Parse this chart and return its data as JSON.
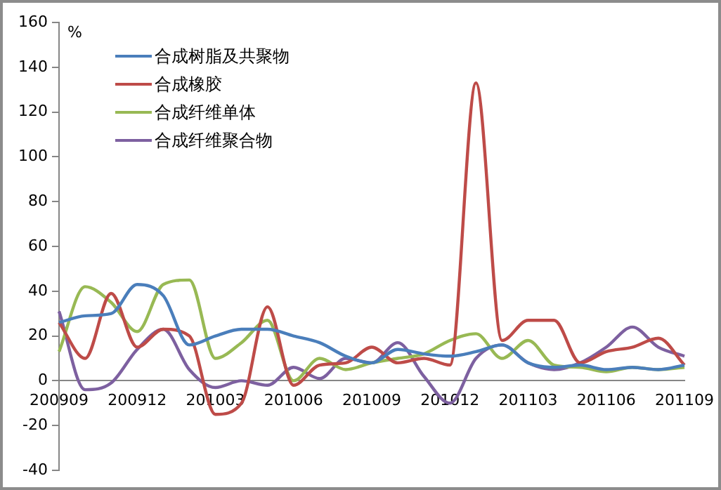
{
  "chart_data": {
    "type": "line",
    "ylabel": "%",
    "categories": [
      "200909",
      null,
      null,
      "200912",
      null,
      null,
      "201003",
      null,
      null,
      "201006",
      null,
      null,
      "201009",
      null,
      null,
      "201012",
      null,
      null,
      "201103",
      null,
      null,
      "201106",
      null,
      null,
      "201109"
    ],
    "series": [
      {
        "name": "合成树脂及共聚物",
        "color": "#4a7ebb",
        "values": [
          26,
          29,
          30,
          43,
          38,
          16,
          20,
          23,
          23,
          20,
          17,
          11,
          8,
          14,
          12,
          11,
          13,
          16,
          8,
          6,
          7,
          5,
          6,
          5,
          7
        ]
      },
      {
        "name": "合成橡胶",
        "color": "#be4b48",
        "values": [
          26,
          10,
          39,
          15,
          23,
          20,
          -15,
          -10,
          33,
          -2,
          7,
          8,
          15,
          8,
          10,
          7,
          133,
          18,
          27,
          27,
          8,
          13,
          15,
          19,
          7
        ]
      },
      {
        "name": "合成纤维单体",
        "color": "#98b954",
        "values": [
          13,
          42,
          35,
          22,
          43,
          45,
          10,
          17,
          27,
          0,
          10,
          5,
          8,
          10,
          12,
          18,
          21,
          10,
          18,
          7,
          6,
          4,
          6,
          5,
          6
        ]
      },
      {
        "name": "合成纤维聚合物",
        "color": "#7d60a0",
        "values": [
          31,
          -4,
          -1,
          14,
          23,
          5,
          -3,
          0,
          -2,
          6,
          1,
          10,
          8,
          17,
          2,
          -10,
          10,
          16,
          8,
          5,
          8,
          15,
          24,
          15,
          11
        ]
      }
    ],
    "ylim": [
      -40,
      160
    ],
    "yticks": [
      -40,
      -20,
      0,
      20,
      40,
      60,
      80,
      100,
      120,
      140,
      160
    ],
    "grid": false,
    "legend": "top left",
    "marker": "none",
    "line_style": "solid"
  }
}
